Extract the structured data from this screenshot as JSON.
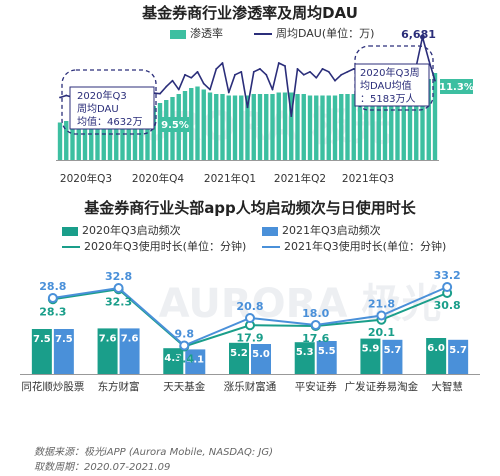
{
  "source_label": "数据来源：极光iAPP (Aurora Mobile, NASDAQ: JG)",
  "period_label": "取数周期：2020.07-2021.09",
  "watermark": "AURORA 极光",
  "chart_data": [
    {
      "type": "line",
      "title": "基金券商行业渗透率及周均DAU",
      "xlabel": "",
      "ylabel": "",
      "x_tick_labels": [
        "2020年Q3",
        "2020年Q4",
        "2021年Q1",
        "2021年Q2",
        "2021年Q3"
      ],
      "series": [
        {
          "name": "渗透率",
          "render": "area",
          "color": "#3dbfa1",
          "values": [
            9.5,
            9.6,
            9.6,
            9.5,
            9.6,
            9.7,
            9.8,
            9.8,
            9.9,
            9.9,
            10.0,
            10.1,
            10.2,
            10.4,
            10.5,
            10.6,
            10.8,
            11.0,
            11.2,
            11.4,
            11.6,
            11.8,
            11.9,
            11.7,
            11.5,
            11.4,
            11.4,
            11.3,
            11.3,
            11.3,
            11.3,
            11.4,
            11.4,
            11.4,
            11.4,
            11.5,
            11.5,
            11.5,
            11.4,
            11.4,
            11.3,
            11.3,
            11.3,
            11.3,
            11.3,
            11.4,
            11.4,
            11.4,
            11.4,
            11.4,
            11.4,
            11.4,
            11.5,
            11.6,
            11.6,
            11.7,
            11.7,
            11.8,
            12.0,
            12.4,
            12.8
          ]
        },
        {
          "name": "周均DAU(单位：万)",
          "color": "#2b2e7a",
          "values": [
            4632,
            4700,
            4640,
            4680,
            4620,
            4650,
            4700,
            4660,
            3900,
            4500,
            4700,
            4720,
            4680,
            4750,
            4720,
            4780,
            4760,
            5000,
            5200,
            4900,
            5400,
            5300,
            5500,
            5100,
            4900,
            5600,
            5800,
            4800,
            5400,
            5500,
            4300,
            5500,
            5600,
            5400,
            4900,
            5800,
            5700,
            4000,
            5600,
            5400,
            5500,
            5300,
            5600,
            5500,
            5200,
            5400,
            5500,
            5600,
            5500,
            5300,
            5400,
            5500,
            5400,
            5300,
            5183,
            5400,
            5500,
            5700,
            6681,
            5900,
            5200
          ]
        }
      ],
      "annotations": [
        {
          "text": "9.5%"
        },
        {
          "text": "11.3%"
        },
        {
          "text": "6,681"
        },
        {
          "text": "2020年Q3周均DAU均值：4632万"
        },
        {
          "text": "2020年Q3周均DAU均值：5183万人"
        }
      ]
    },
    {
      "type": "bar",
      "title": "基金券商行业头部app人均启动频次与日使用时长",
      "categories": [
        "同花顺炒股票",
        "东方财富",
        "天天基金",
        "涨乐财富通",
        "平安证券",
        "广发证券易淘金",
        "大智慧"
      ],
      "ylim": [
        0,
        36
      ],
      "series": [
        {
          "name": "2020年Q3启动频次",
          "render": "bar",
          "color": "#1a9e8a",
          "values": [
            7.5,
            7.6,
            4.3,
            5.2,
            5.3,
            5.9,
            6.0
          ]
        },
        {
          "name": "2021年Q3启动频次",
          "render": "bar",
          "color": "#4a90d9",
          "values": [
            7.5,
            7.6,
            4.1,
            5.0,
            5.5,
            5.7,
            5.7
          ]
        },
        {
          "name": "2020年Q3使用时长(单位：分钟)",
          "render": "line",
          "color": "#1a9e8a",
          "values": [
            28.3,
            32.3,
            9.4,
            17.9,
            17.6,
            20.1,
            30.8
          ]
        },
        {
          "name": "2021年Q3使用时长(单位：分钟)",
          "render": "line",
          "color": "#4a90d9",
          "values": [
            28.8,
            32.8,
            9.8,
            20.8,
            18.0,
            21.8,
            33.2
          ]
        }
      ]
    }
  ]
}
